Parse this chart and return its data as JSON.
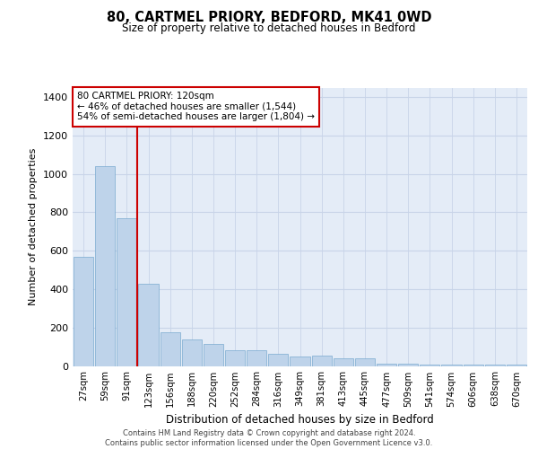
{
  "title_line1": "80, CARTMEL PRIORY, BEDFORD, MK41 0WD",
  "title_line2": "Size of property relative to detached houses in Bedford",
  "xlabel": "Distribution of detached houses by size in Bedford",
  "ylabel": "Number of detached properties",
  "categories": [
    "27sqm",
    "59sqm",
    "91sqm",
    "123sqm",
    "156sqm",
    "188sqm",
    "220sqm",
    "252sqm",
    "284sqm",
    "316sqm",
    "349sqm",
    "381sqm",
    "413sqm",
    "445sqm",
    "477sqm",
    "509sqm",
    "541sqm",
    "574sqm",
    "606sqm",
    "638sqm",
    "670sqm"
  ],
  "values": [
    570,
    1040,
    770,
    430,
    175,
    140,
    115,
    80,
    80,
    65,
    50,
    55,
    40,
    40,
    10,
    10,
    5,
    5,
    5,
    5,
    5
  ],
  "bar_color": "#bed3ea",
  "bar_edge_color": "#7aaad0",
  "grid_color": "#c8d4e8",
  "bg_color": "#e4ecf7",
  "vline_color": "#cc0000",
  "annotation_text": "80 CARTMEL PRIORY: 120sqm\n← 46% of detached houses are smaller (1,544)\n54% of semi-detached houses are larger (1,804) →",
  "annotation_box_color": "#ffffff",
  "annotation_box_edgecolor": "#cc0000",
  "footer_line1": "Contains HM Land Registry data © Crown copyright and database right 2024.",
  "footer_line2": "Contains public sector information licensed under the Open Government Licence v3.0.",
  "ylim": [
    0,
    1450
  ],
  "yticks": [
    0,
    200,
    400,
    600,
    800,
    1000,
    1200,
    1400
  ]
}
